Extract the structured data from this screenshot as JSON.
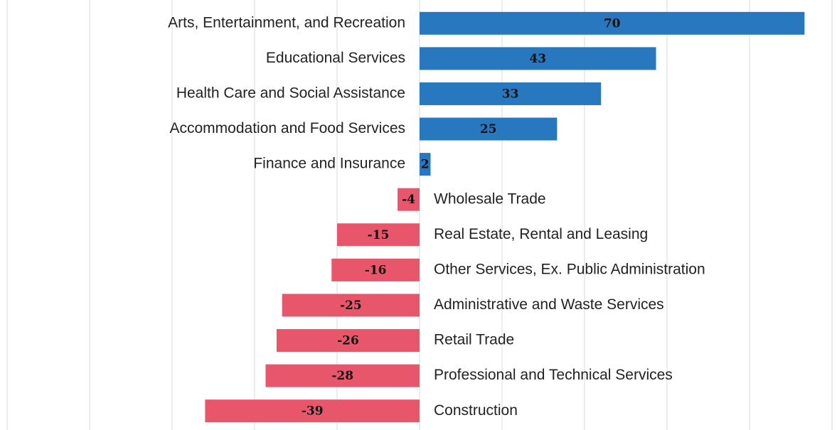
{
  "chart_data": {
    "type": "diverging-bar",
    "categories": [
      "Arts, Entertainment, and Recreation",
      "Educational Services",
      "Health Care and Social Assistance",
      "Accommodation and Food Services",
      "Finance and Insurance",
      "Wholesale Trade",
      "Real Estate, Rental and Leasing",
      "Other Services, Ex. Public Administration",
      "Administrative and Waste Services",
      "Retail Trade",
      "Professional and Technical Services",
      "Construction"
    ],
    "values": [
      70,
      43,
      33,
      25,
      2,
      -4,
      -15,
      -16,
      -25,
      -26,
      -28,
      -39
    ],
    "positive_color": "#2878c0",
    "negative_color": "#e8566c",
    "xlim": [
      -75,
      75
    ],
    "xticks": [
      -75,
      -60,
      -45,
      -30,
      -15,
      0,
      15,
      30,
      45,
      60,
      75
    ],
    "grid": true
  }
}
